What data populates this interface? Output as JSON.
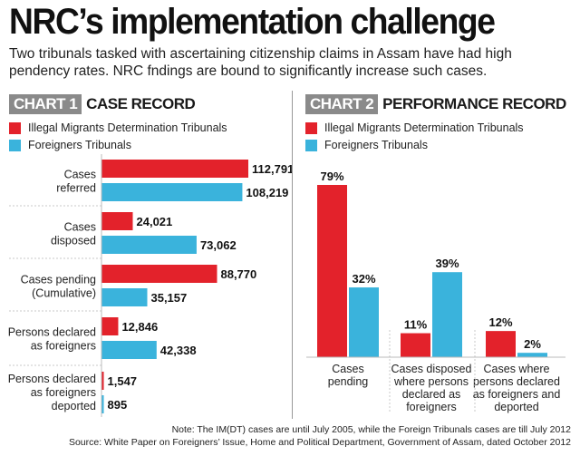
{
  "title": "NRC’s implementation challenge",
  "subtitle": "Two tribunals tasked with ascertaining citizenship claims in Assam have had high pendency rates. NRC fndings are bound to significantly increase such cases.",
  "colors": {
    "red": "#e3222b",
    "blue": "#3ab3dc"
  },
  "chart_data": [
    {
      "type": "bar",
      "orientation": "horizontal",
      "badge": "CHART 1",
      "title": "CASE RECORD",
      "categories": [
        [
          "Cases",
          "referred"
        ],
        [
          "Cases",
          "disposed"
        ],
        [
          "Cases pending",
          "(Cumulative)"
        ],
        [
          "Persons declared",
          "as foreigners"
        ],
        [
          "Persons declared",
          "as foreigners",
          "deported"
        ]
      ],
      "series": [
        {
          "name": "Illegal Migrants Determination Tribunals",
          "values": [
            112791,
            24021,
            88770,
            12846,
            1547
          ],
          "labels": [
            "112,791",
            "24,021",
            "88,770",
            "12,846",
            "1,547"
          ]
        },
        {
          "name": "Foreigners Tribunals",
          "values": [
            108219,
            73062,
            35157,
            42338,
            895
          ],
          "labels": [
            "108,219",
            "73,062",
            "35,157",
            "42,338",
            "895"
          ]
        }
      ],
      "xlim": [
        0,
        112791
      ]
    },
    {
      "type": "bar",
      "orientation": "vertical",
      "badge": "CHART 2",
      "title": "PERFORMANCE RECORD",
      "categories": [
        [
          "Cases",
          "pending"
        ],
        [
          "Cases disposed",
          "where persons",
          "declared as",
          "foreigners"
        ],
        [
          "Cases where",
          "persons declared",
          "as foreigners and",
          "deported"
        ]
      ],
      "series": [
        {
          "name": "Illegal Migrants Determination Tribunals",
          "values": [
            79,
            11,
            12
          ],
          "labels": [
            "79%",
            "11%",
            "12%"
          ]
        },
        {
          "name": "Foreigners Tribunals",
          "values": [
            32,
            39,
            2
          ],
          "labels": [
            "32%",
            "39%",
            "2%"
          ]
        }
      ],
      "ylim": [
        0,
        79
      ]
    }
  ],
  "notes": [
    "Note: The IM(DT) cases are until July 2005, while the Foreign Tribunals cases are till July 2012",
    "Source: White Paper on Foreigners’ Issue, Home and Political Department, Government of Assam, dated October 2012"
  ]
}
